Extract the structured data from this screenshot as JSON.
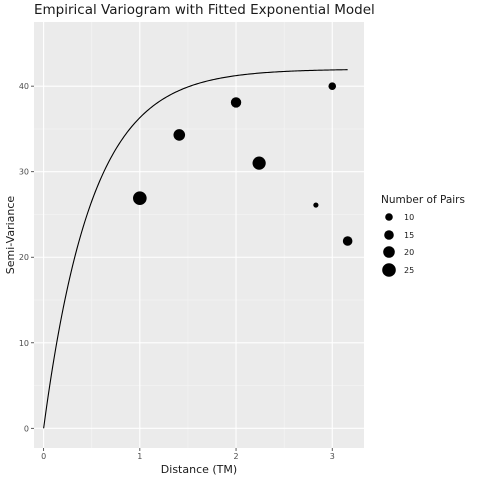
{
  "chart_data": {
    "type": "scatter",
    "title": "Empirical Variogram with Fitted Exponential Model",
    "xlabel": "Distance (TM)",
    "ylabel": "Semi-Variance",
    "xlim": [
      -0.1,
      3.33
    ],
    "ylim": [
      -2.3,
      47.5
    ],
    "x_ticks": [
      0,
      1,
      2,
      3
    ],
    "y_ticks": [
      0,
      10,
      20,
      30,
      40
    ],
    "grid": true,
    "legend": {
      "title": "Number of Pairs",
      "position": "right",
      "entries": [
        {
          "label": "10",
          "value": 10
        },
        {
          "label": "15",
          "value": 15
        },
        {
          "label": "20",
          "value": 20
        },
        {
          "label": "25",
          "value": 25
        }
      ]
    },
    "points": [
      {
        "x": 1.0,
        "y": 26.9,
        "pairs": 25
      },
      {
        "x": 1.41,
        "y": 34.3,
        "pairs": 20
      },
      {
        "x": 2.0,
        "y": 38.1,
        "pairs": 17
      },
      {
        "x": 2.24,
        "y": 31.0,
        "pairs": 24
      },
      {
        "x": 2.83,
        "y": 26.1,
        "pairs": 4
      },
      {
        "x": 3.0,
        "y": 40.0,
        "pairs": 10
      },
      {
        "x": 3.16,
        "y": 21.9,
        "pairs": 15
      }
    ],
    "model": {
      "name": "Exponential",
      "sill": 42.0,
      "range": 0.5,
      "x_max": 3.16
    },
    "colors": {
      "panel": "#ebebeb",
      "grid_major": "#ffffff",
      "grid_minor": "#f5f5f5",
      "point": "#000000",
      "line": "#000000"
    }
  }
}
